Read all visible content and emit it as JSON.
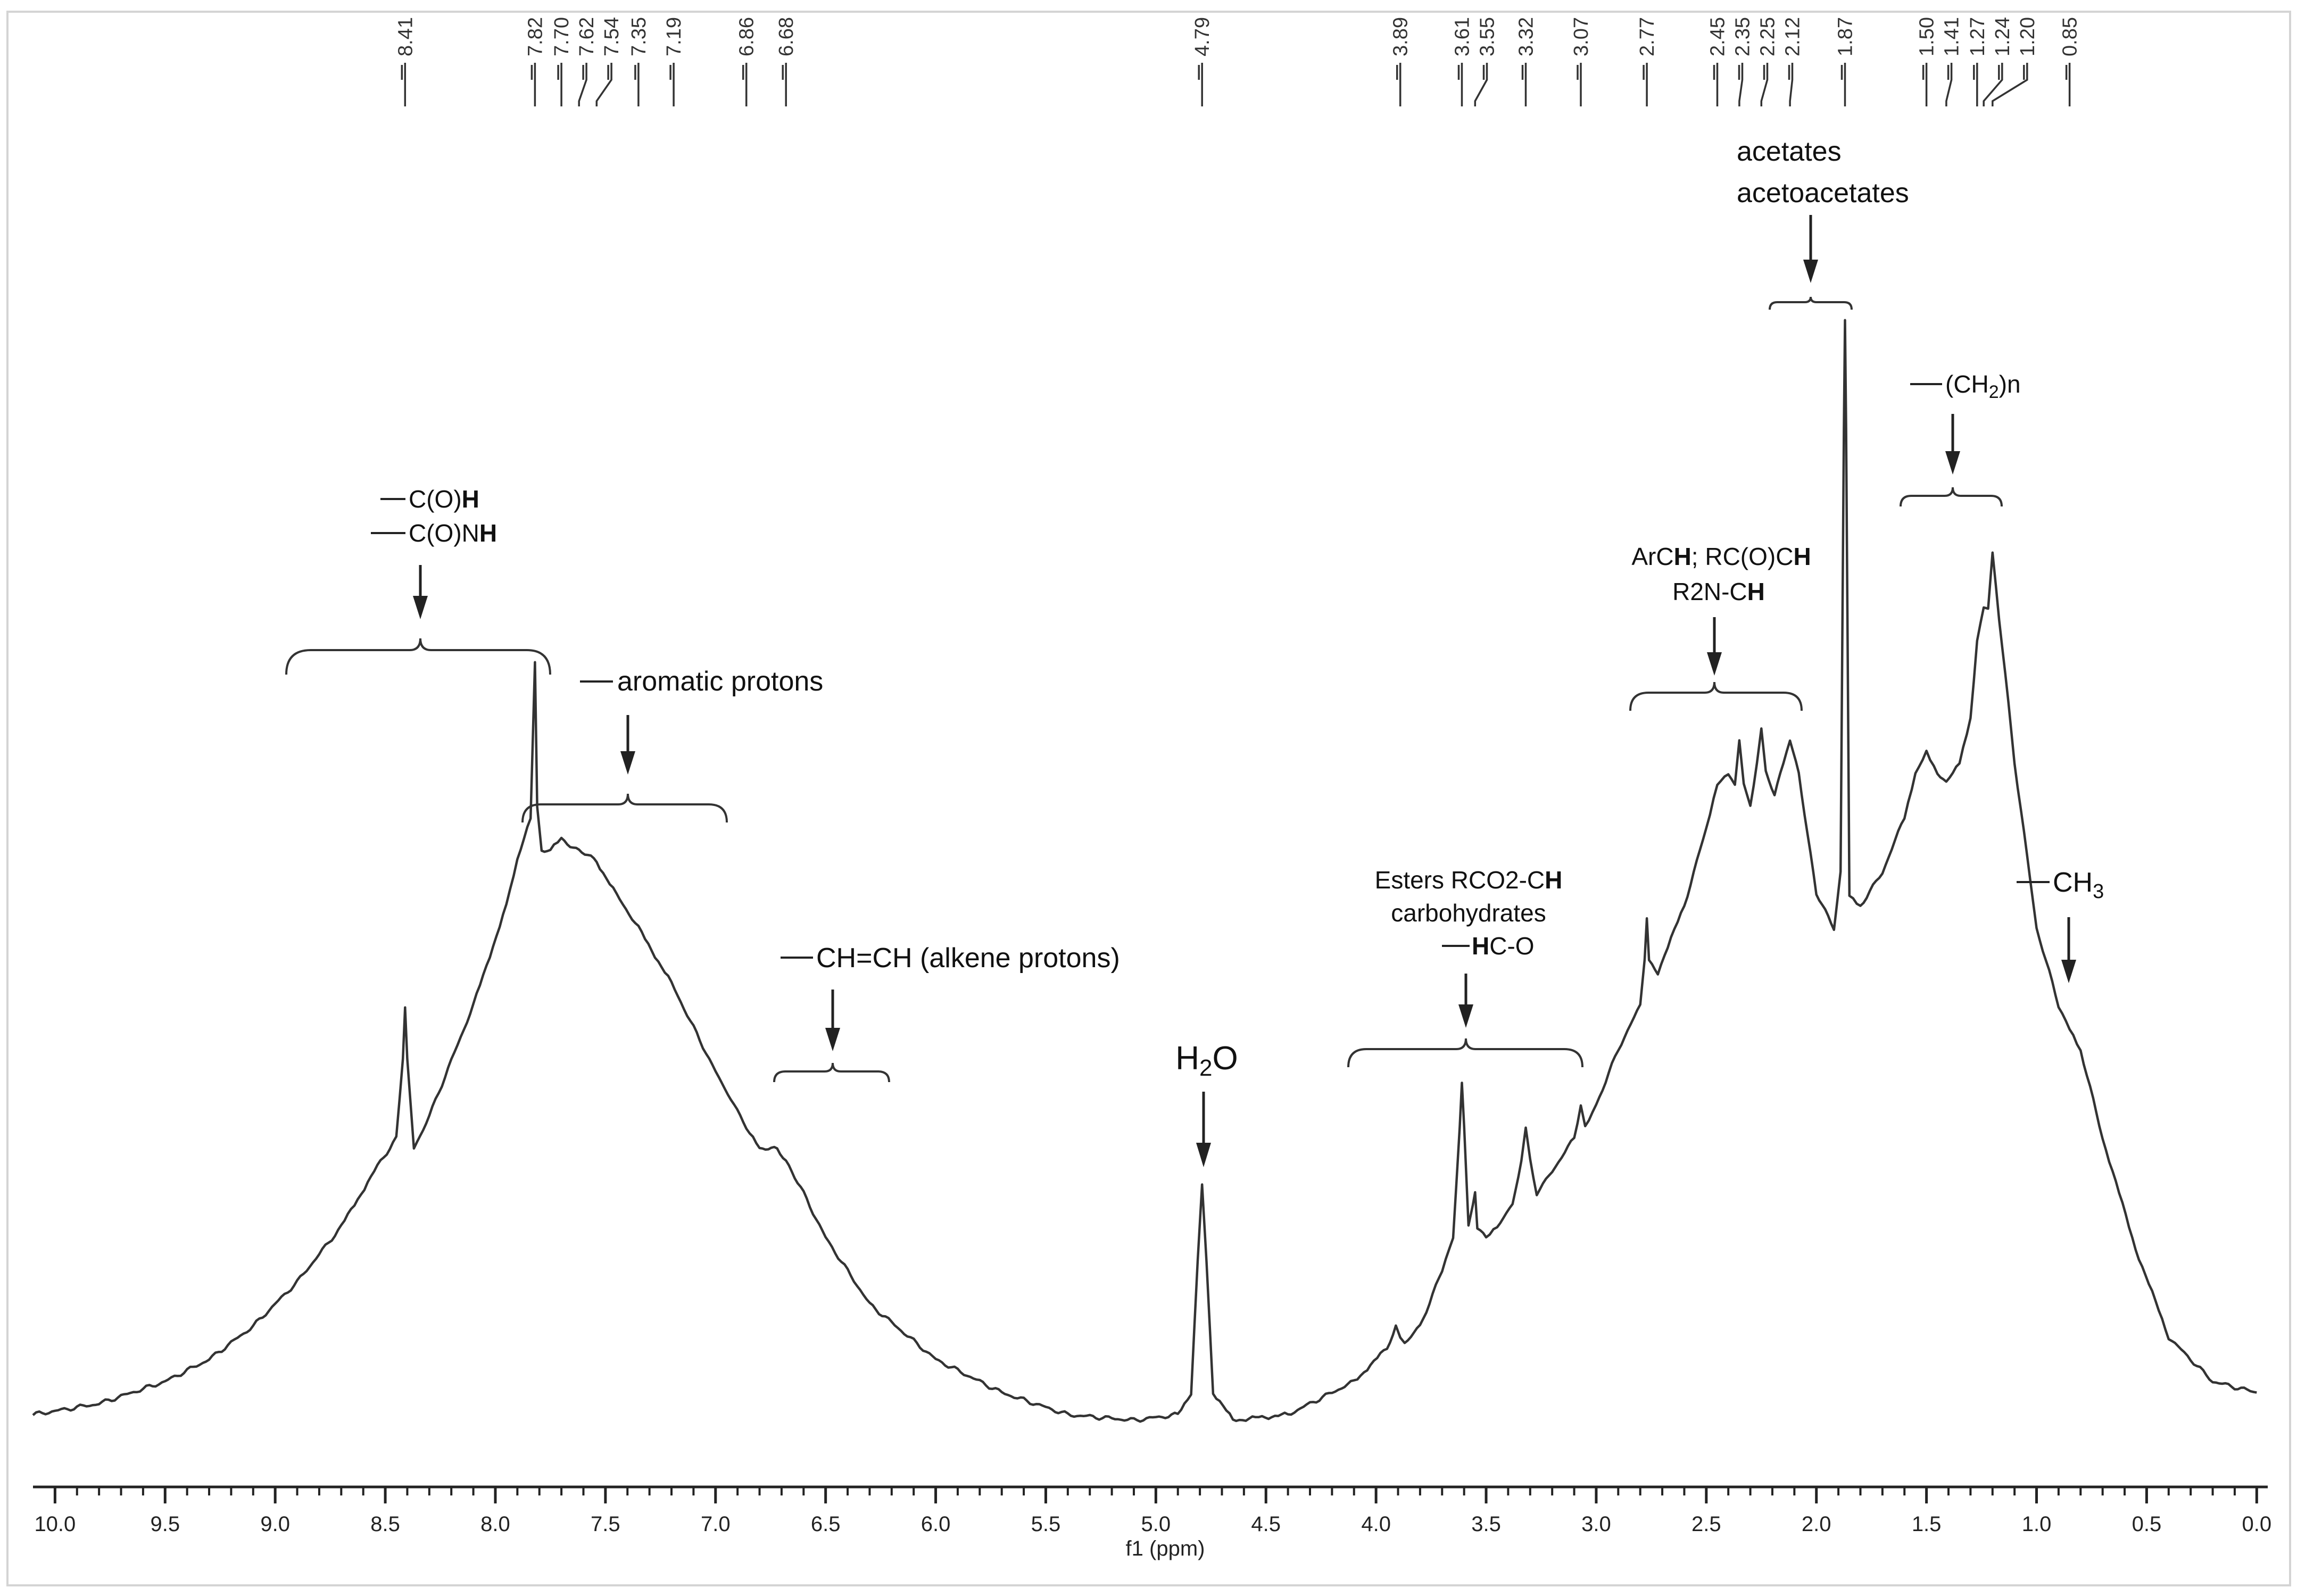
{
  "chart_data": {
    "type": "line",
    "title": "",
    "xlabel": "f1 (ppm)",
    "ylabel": "",
    "xlim": [
      10.1,
      -0.05
    ],
    "x_reversed": true,
    "grid": false,
    "x_ticks": [
      "10.0",
      "9.5",
      "9.0",
      "8.5",
      "8.0",
      "7.5",
      "7.0",
      "6.5",
      "6.0",
      "5.5",
      "5.0",
      "4.5",
      "4.0",
      "3.5",
      "3.0",
      "2.5",
      "2.0",
      "1.5",
      "1.0",
      "0.5",
      "0.0"
    ],
    "peak_labels": [
      "8.41",
      "7.82",
      "7.70",
      "7.62",
      "7.54",
      "7.35",
      "7.19",
      "6.86",
      "6.68",
      "4.79",
      "3.89",
      "3.61",
      "3.55",
      "3.32",
      "3.07",
      "2.77",
      "2.45",
      "2.35",
      "2.25",
      "2.12",
      "1.87",
      "1.50",
      "1.41",
      "1.27",
      "1.24",
      "1.20",
      "0.85"
    ],
    "series": [
      {
        "x": [
          10.1,
          9.8,
          9.5,
          9.3,
          9.1,
          8.9,
          8.7,
          8.55,
          8.45,
          8.42,
          8.41,
          8.4,
          8.37,
          8.3,
          8.1,
          7.95,
          7.9,
          7.84,
          7.82,
          7.81,
          7.79,
          7.75,
          7.7,
          7.62,
          7.54,
          7.45,
          7.35,
          7.2,
          7.0,
          6.86,
          6.8,
          6.72,
          6.68,
          6.6,
          6.5,
          6.3,
          6.0,
          5.7,
          5.4,
          5.1,
          4.9,
          4.84,
          4.81,
          4.79,
          4.77,
          4.74,
          4.65,
          4.4,
          4.1,
          3.95,
          3.91,
          3.89,
          3.87,
          3.8,
          3.7,
          3.65,
          3.62,
          3.61,
          3.6,
          3.58,
          3.56,
          3.55,
          3.54,
          3.5,
          3.45,
          3.38,
          3.34,
          3.32,
          3.3,
          3.27,
          3.2,
          3.1,
          3.07,
          3.05,
          3.0,
          2.9,
          2.8,
          2.78,
          2.77,
          2.76,
          2.72,
          2.6,
          2.5,
          2.45,
          2.4,
          2.37,
          2.35,
          2.33,
          2.3,
          2.27,
          2.25,
          2.23,
          2.19,
          2.15,
          2.12,
          2.08,
          2.0,
          1.92,
          1.89,
          1.875,
          1.87,
          1.865,
          1.85,
          1.8,
          1.7,
          1.6,
          1.55,
          1.5,
          1.45,
          1.41,
          1.38,
          1.35,
          1.3,
          1.27,
          1.24,
          1.22,
          1.2,
          1.17,
          1.1,
          1.0,
          0.9,
          0.85,
          0.8,
          0.7,
          0.55,
          0.4,
          0.2,
          0.0
        ],
        "y": [
          0.01,
          0.02,
          0.04,
          0.06,
          0.09,
          0.13,
          0.18,
          0.23,
          0.26,
          0.33,
          0.38,
          0.33,
          0.25,
          0.28,
          0.38,
          0.47,
          0.51,
          0.55,
          0.69,
          0.56,
          0.52,
          0.52,
          0.53,
          0.52,
          0.51,
          0.48,
          0.45,
          0.4,
          0.32,
          0.27,
          0.25,
          0.25,
          0.24,
          0.21,
          0.17,
          0.11,
          0.06,
          0.03,
          0.01,
          0.005,
          0.01,
          0.03,
          0.15,
          0.22,
          0.15,
          0.03,
          0.005,
          0.01,
          0.04,
          0.07,
          0.09,
          0.08,
          0.075,
          0.09,
          0.14,
          0.17,
          0.27,
          0.31,
          0.27,
          0.18,
          0.2,
          0.21,
          0.18,
          0.17,
          0.18,
          0.2,
          0.24,
          0.27,
          0.24,
          0.21,
          0.23,
          0.26,
          0.29,
          0.27,
          0.29,
          0.34,
          0.38,
          0.42,
          0.46,
          0.42,
          0.41,
          0.47,
          0.54,
          0.58,
          0.59,
          0.58,
          0.62,
          0.58,
          0.56,
          0.6,
          0.63,
          0.59,
          0.57,
          0.6,
          0.62,
          0.59,
          0.48,
          0.45,
          0.5,
          0.9,
          1.0,
          0.9,
          0.48,
          0.47,
          0.5,
          0.55,
          0.59,
          0.61,
          0.59,
          0.58,
          0.59,
          0.6,
          0.64,
          0.71,
          0.74,
          0.74,
          0.79,
          0.73,
          0.6,
          0.45,
          0.38,
          0.36,
          0.34,
          0.26,
          0.16,
          0.08,
          0.04,
          0.03
        ]
      }
    ],
    "annotations": {
      "formyl_lines": [
        "C(O)",
        "C(O)N"
      ],
      "formyl_bold": "H",
      "aromatic": "aromatic protons",
      "alkene": "CH=CH (alkene protons)",
      "water_main": "H",
      "water_sub": "2",
      "water_tail": "O",
      "esters_line1_pre": "Esters RCO2-C",
      "esters_line1_bold": "H",
      "esters_line2": "carbohydrates",
      "esters_line3_bold": "H",
      "esters_line3_post": "C-O",
      "archh_pre": "ArC",
      "archh_bold1": "H",
      "archh_mid": "; RC(O)C",
      "archh_bold2": "H",
      "r2n_pre": "R2N-C",
      "r2n_bold": "H",
      "acetates": "acetates",
      "acetoacetates": "acetoacetates",
      "ch2_pre": "(CH",
      "ch2_sub": "2",
      "ch2_post": ")n",
      "ch3_pre": "CH",
      "ch3_sub": "3"
    }
  }
}
